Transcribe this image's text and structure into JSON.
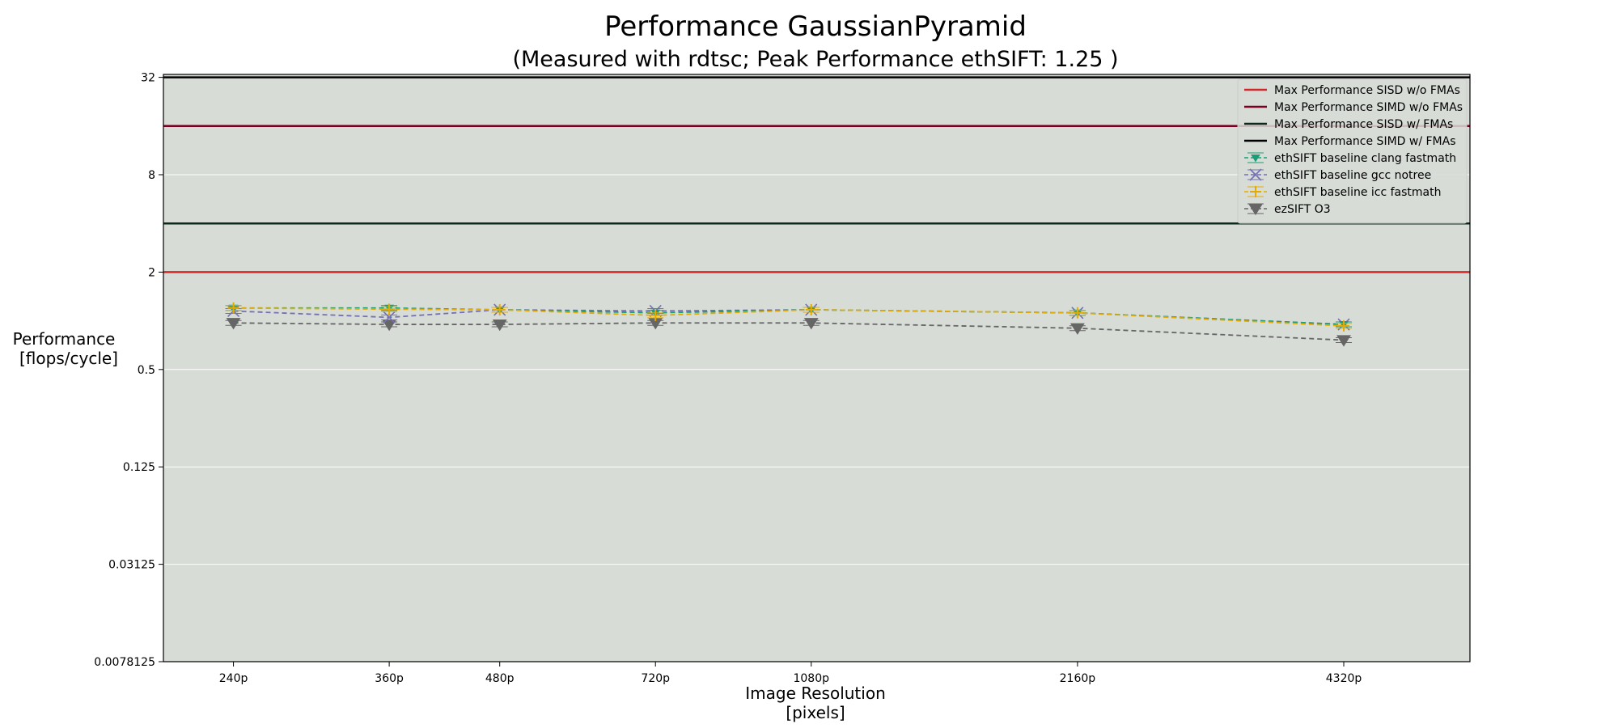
{
  "chart_data": {
    "type": "line",
    "title": "Performance GaussianPyramid",
    "subtitle": "(Measured with rdtsc; Peak Performance ethSIFT: 1.25 )",
    "xlabel": [
      "Image Resolution",
      "[pixels]"
    ],
    "ylabel": [
      "Performance",
      "[flops/cycle]"
    ],
    "yscale": "log2",
    "ylim": [
      0.0078125,
      32
    ],
    "yticks": [
      {
        "value": 0.0078125,
        "label": "0.0078125"
      },
      {
        "value": 0.03125,
        "label": "0.03125"
      },
      {
        "value": 0.125,
        "label": "0.125"
      },
      {
        "value": 0.5,
        "label": "0.5"
      },
      {
        "value": 2,
        "label": "2"
      },
      {
        "value": 8,
        "label": "8"
      },
      {
        "value": 32,
        "label": "32"
      }
    ],
    "x": [
      240,
      360,
      480,
      720,
      1080,
      2160,
      4320
    ],
    "categories": [
      "240p",
      "360p",
      "480p",
      "720p",
      "1080p",
      "2160p",
      "4320p"
    ],
    "grid": "horizontal",
    "legend_position": "top-right",
    "hlines": [
      {
        "name": "Max Performance SISD w/o FMAs",
        "value": 2,
        "color": "#d62728"
      },
      {
        "name": "Max Performance SIMD w/o FMAs",
        "value": 16,
        "color": "#7b0020"
      },
      {
        "name": "Max Performance SISD w/ FMAs",
        "value": 4,
        "color": "#0b2a1a"
      },
      {
        "name": "Max Performance SIMD w/ FMAs",
        "value": 32,
        "color": "#000000"
      }
    ],
    "series": [
      {
        "name": "ethSIFT baseline clang fastmath",
        "marker": "triangle-down-small",
        "color": "#1b9e77",
        "values": [
          1.2,
          1.2,
          1.17,
          1.12,
          1.17,
          1.12,
          0.95
        ]
      },
      {
        "name": "ethSIFT baseline gcc notree",
        "marker": "x",
        "color": "#7570b3",
        "values": [
          1.15,
          1.05,
          1.17,
          1.15,
          1.17,
          1.12,
          0.95
        ]
      },
      {
        "name": "ethSIFT baseline icc fastmath",
        "marker": "plus",
        "color": "#e6ab02",
        "values": [
          1.2,
          1.18,
          1.17,
          1.08,
          1.17,
          1.12,
          0.93
        ]
      },
      {
        "name": "ezSIFT O3",
        "marker": "triangle-down",
        "color": "#666666",
        "values": [
          0.97,
          0.95,
          0.95,
          0.97,
          0.97,
          0.9,
          0.76
        ]
      }
    ],
    "colors": {
      "plot_background": "#d7dcd7",
      "grid": "#ffffff"
    }
  }
}
